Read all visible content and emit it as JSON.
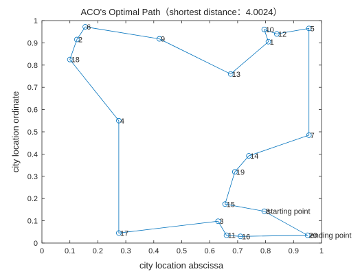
{
  "chart_data": {
    "type": "line",
    "title": "ACO's Optimal Path（shortest distance：4.0024）",
    "xlabel": "city location abscissa",
    "ylabel": "city location ordinate",
    "xlim": [
      0,
      1
    ],
    "ylim": [
      0,
      1
    ],
    "xticks": [
      "0",
      "0.1",
      "0.2",
      "0.3",
      "0.4",
      "0.5",
      "0.6",
      "0.7",
      "0.8",
      "0.9",
      "1"
    ],
    "yticks": [
      "0",
      "0.1",
      "0.2",
      "0.3",
      "0.4",
      "0.5",
      "0.6",
      "0.7",
      "0.8",
      "0.9",
      "1"
    ],
    "grid": false,
    "line_color": "#0072BD",
    "cities": [
      {
        "id": "1",
        "x": 0.81,
        "y": 0.905
      },
      {
        "id": "2",
        "x": 0.125,
        "y": 0.915
      },
      {
        "id": "3",
        "x": 0.63,
        "y": 0.098
      },
      {
        "id": "4",
        "x": 0.275,
        "y": 0.55
      },
      {
        "id": "5",
        "x": 0.955,
        "y": 0.965
      },
      {
        "id": "6",
        "x": 0.155,
        "y": 0.972
      },
      {
        "id": "7",
        "x": 0.955,
        "y": 0.485
      },
      {
        "id": "8",
        "x": 0.795,
        "y": 0.143
      },
      {
        "id": "9",
        "x": 0.42,
        "y": 0.918
      },
      {
        "id": "10",
        "x": 0.795,
        "y": 0.96
      },
      {
        "id": "11",
        "x": 0.66,
        "y": 0.035
      },
      {
        "id": "12",
        "x": 0.84,
        "y": 0.94
      },
      {
        "id": "13",
        "x": 0.675,
        "y": 0.76
      },
      {
        "id": "14",
        "x": 0.74,
        "y": 0.392
      },
      {
        "id": "15",
        "x": 0.655,
        "y": 0.175
      },
      {
        "id": "16",
        "x": 0.71,
        "y": 0.03
      },
      {
        "id": "17",
        "x": 0.275,
        "y": 0.045
      },
      {
        "id": "18",
        "x": 0.1,
        "y": 0.825
      },
      {
        "id": "19",
        "x": 0.69,
        "y": 0.32
      },
      {
        "id": "20",
        "x": 0.95,
        "y": 0.035
      }
    ],
    "route": [
      "8",
      "15",
      "19",
      "14",
      "7",
      "5",
      "12",
      "10",
      "1",
      "13",
      "9",
      "6",
      "2",
      "18",
      "4",
      "17",
      "3",
      "11",
      "16",
      "20",
      "8"
    ],
    "annotations": [
      {
        "text": "starting point",
        "city": "8"
      },
      {
        "text": "ending point",
        "city": "20"
      }
    ]
  }
}
